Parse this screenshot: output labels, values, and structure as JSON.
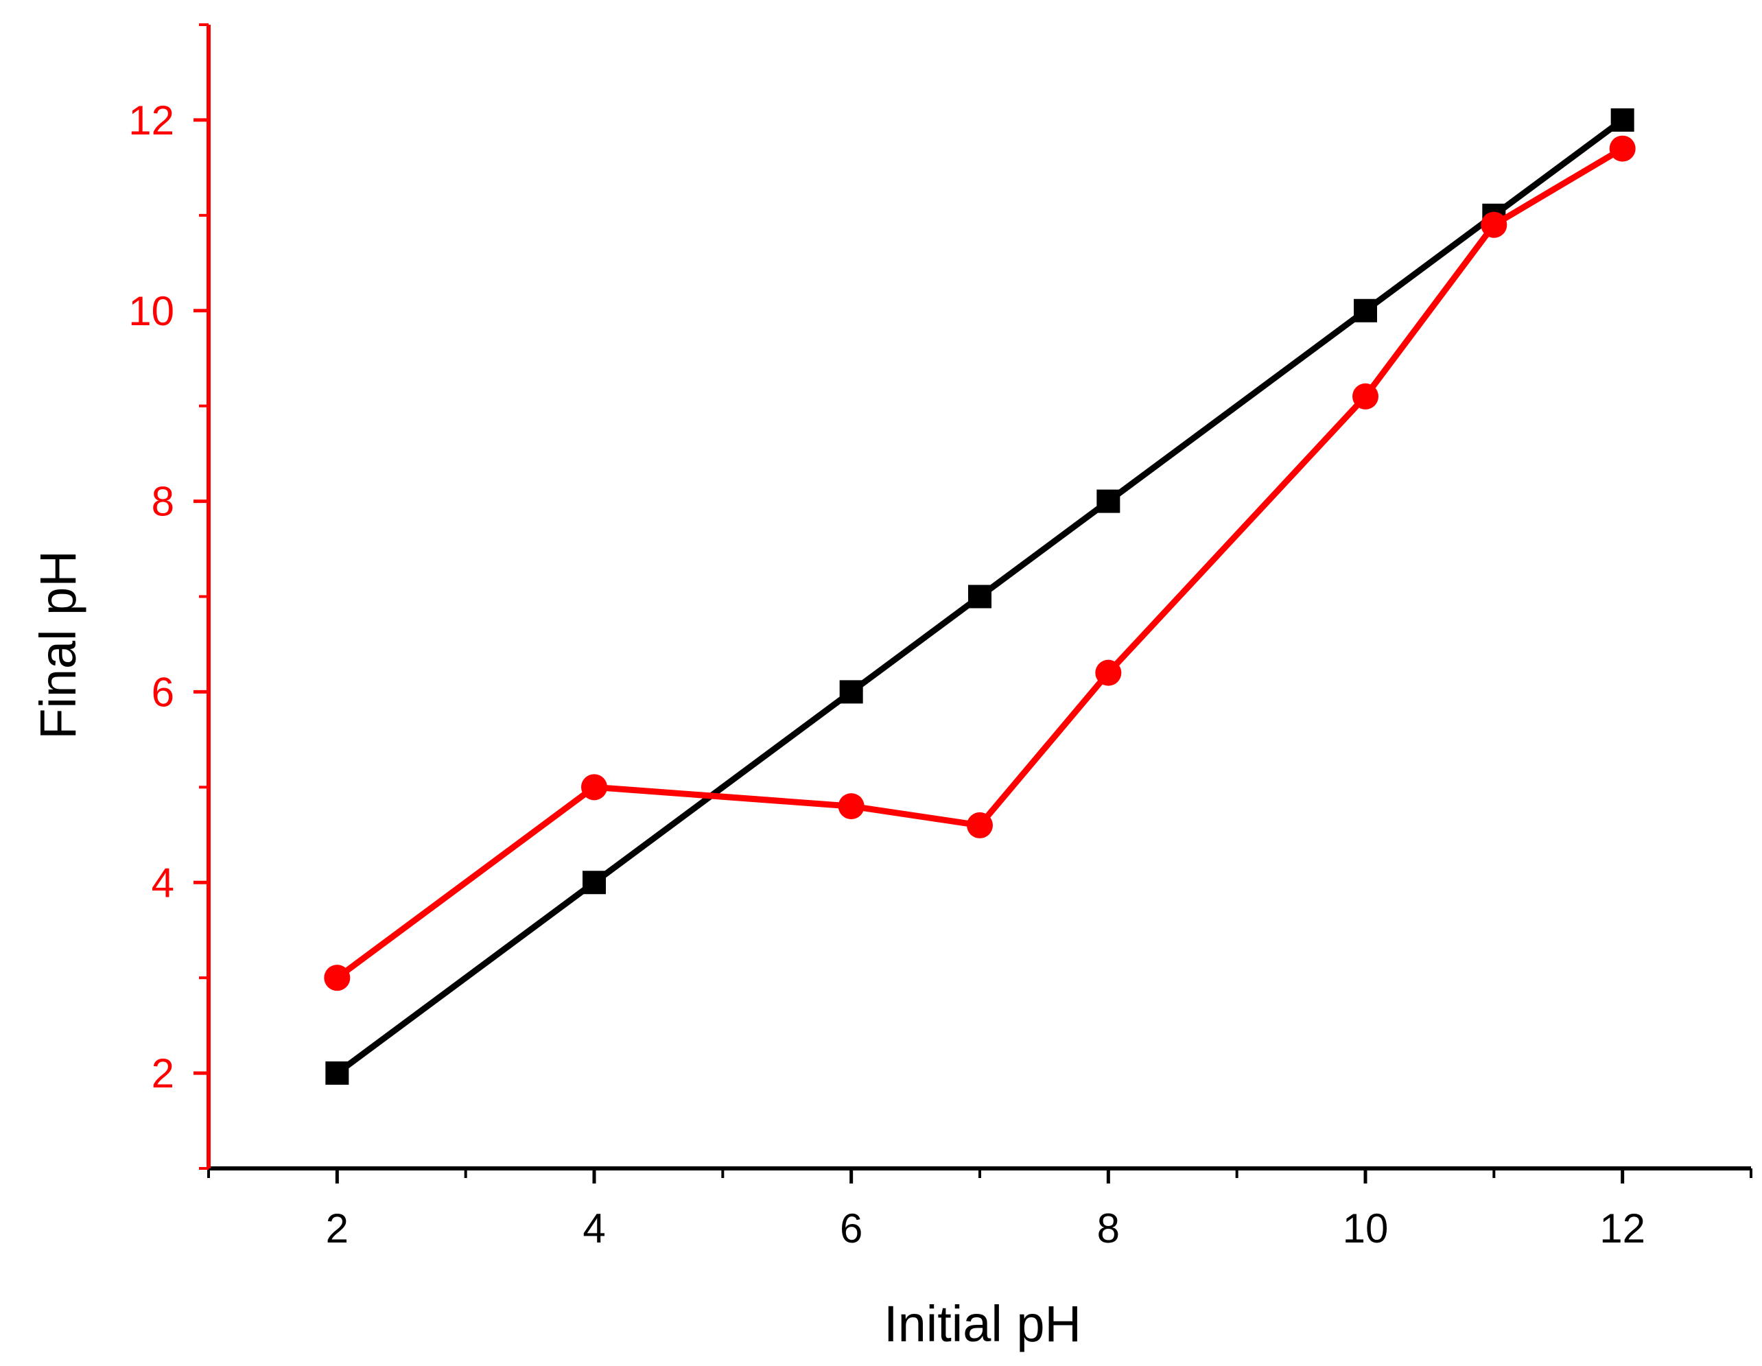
{
  "colors": {
    "series_1": "#000000",
    "series_2": "#ff0000",
    "y_axis": "#ff0000",
    "x_axis": "#000000"
  },
  "chart_data": {
    "type": "line",
    "title": "",
    "xlabel": "Initial pH",
    "ylabel": "Final pH",
    "xlim": [
      1,
      13
    ],
    "ylim": [
      1,
      13
    ],
    "x_ticks": [
      2,
      4,
      6,
      8,
      10,
      12
    ],
    "x_minor_ticks": [
      3,
      5,
      7,
      9,
      11
    ],
    "y_ticks": [
      2,
      4,
      6,
      8,
      10,
      12
    ],
    "y_minor_ticks": [
      3,
      5,
      7,
      9,
      11
    ],
    "grid": false,
    "legend": "none",
    "series": [
      {
        "marker": "square",
        "color": "#000000",
        "x": [
          2,
          4,
          6,
          7,
          8,
          10,
          11,
          12
        ],
        "y": [
          2,
          4,
          6,
          7,
          8,
          10,
          11,
          12
        ]
      },
      {
        "marker": "circle",
        "color": "#ff0000",
        "x": [
          2,
          4,
          6,
          7,
          8,
          10,
          11,
          12
        ],
        "y": [
          3,
          5,
          4.8,
          4.6,
          6.2,
          9.1,
          10.9,
          11.7
        ]
      }
    ]
  }
}
